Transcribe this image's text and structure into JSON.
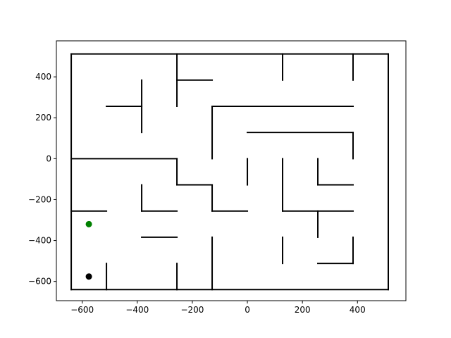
{
  "chart_data": {
    "type": "scatter",
    "title": "",
    "xlabel": "",
    "ylabel": "",
    "xlim": [
      -694,
      576
    ],
    "ylim": [
      -694,
      576
    ],
    "xticks": [
      -600,
      -400,
      -200,
      0,
      200,
      400
    ],
    "xtick_labels": [
      "−600",
      "−400",
      "−200",
      "0",
      "200",
      "400"
    ],
    "yticks": [
      -600,
      -400,
      -200,
      0,
      200,
      400
    ],
    "ytick_labels": [
      "−600",
      "−400",
      "−200",
      "0",
      "200",
      "400"
    ],
    "grid": false,
    "wall_color": "#000000",
    "walls": [
      [
        [
          -640,
          512
        ],
        [
          512,
          512
        ]
      ],
      [
        [
          -640,
          -640
        ],
        [
          512,
          -640
        ]
      ],
      [
        [
          -640,
          -640
        ],
        [
          -640,
          512
        ]
      ],
      [
        [
          512,
          -640
        ],
        [
          512,
          512
        ]
      ],
      [
        [
          -256,
          512
        ],
        [
          -256,
          256
        ]
      ],
      [
        [
          128,
          512
        ],
        [
          128,
          384
        ]
      ],
      [
        [
          384,
          512
        ],
        [
          384,
          384
        ]
      ],
      [
        [
          -256,
          384
        ],
        [
          -128,
          384
        ]
      ],
      [
        [
          -512,
          256
        ],
        [
          -384,
          256
        ]
      ],
      [
        [
          -384,
          384
        ],
        [
          -384,
          128
        ]
      ],
      [
        [
          -128,
          256
        ],
        [
          384,
          256
        ]
      ],
      [
        [
          -128,
          256
        ],
        [
          -128,
          0
        ]
      ],
      [
        [
          0,
          128
        ],
        [
          384,
          128
        ]
      ],
      [
        [
          384,
          128
        ],
        [
          384,
          0
        ]
      ],
      [
        [
          -640,
          0
        ],
        [
          -256,
          0
        ]
      ],
      [
        [
          -256,
          0
        ],
        [
          -256,
          -128
        ]
      ],
      [
        [
          -256,
          -128
        ],
        [
          -128,
          -128
        ]
      ],
      [
        [
          -128,
          -128
        ],
        [
          -128,
          -256
        ]
      ],
      [
        [
          -128,
          -256
        ],
        [
          0,
          -256
        ]
      ],
      [
        [
          0,
          0
        ],
        [
          0,
          -128
        ]
      ],
      [
        [
          128,
          0
        ],
        [
          128,
          -256
        ]
      ],
      [
        [
          256,
          0
        ],
        [
          256,
          -128
        ]
      ],
      [
        [
          256,
          -128
        ],
        [
          384,
          -128
        ]
      ],
      [
        [
          128,
          -256
        ],
        [
          384,
          -256
        ]
      ],
      [
        [
          256,
          -256
        ],
        [
          256,
          -384
        ]
      ],
      [
        [
          -384,
          -128
        ],
        [
          -384,
          -256
        ]
      ],
      [
        [
          -384,
          -256
        ],
        [
          -256,
          -256
        ]
      ],
      [
        [
          -640,
          -256
        ],
        [
          -512,
          -256
        ]
      ],
      [
        [
          -384,
          -384
        ],
        [
          -256,
          -384
        ]
      ],
      [
        [
          -128,
          -384
        ],
        [
          -128,
          -640
        ]
      ],
      [
        [
          -256,
          -512
        ],
        [
          -256,
          -640
        ]
      ],
      [
        [
          -512,
          -512
        ],
        [
          -512,
          -640
        ]
      ],
      [
        [
          128,
          -384
        ],
        [
          128,
          -512
        ]
      ],
      [
        [
          384,
          -384
        ],
        [
          384,
          -512
        ]
      ],
      [
        [
          256,
          -512
        ],
        [
          384,
          -512
        ]
      ]
    ],
    "points": [
      {
        "x": -576,
        "y": -320,
        "color": "#008000"
      },
      {
        "x": -576,
        "y": -576,
        "color": "#000000"
      }
    ]
  }
}
